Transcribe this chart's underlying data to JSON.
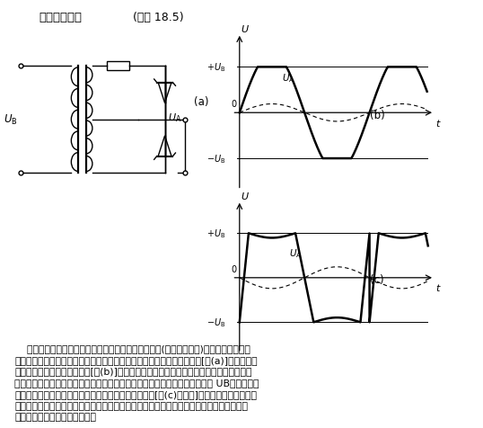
{
  "title_bold": "交流稳压电路",
  "title_normal": "(如图 18.5)",
  "bg_color": "#ffffff",
  "paragraph_lines": [
    "    将两个具有同样稳压值的稳压管反向串联后经由电阻(或电容、电感)接至交流电源，这",
    "里交流电源为变压器次级绕组，利用其抽头作输出端，从而构成桥式电路[图(a)]。在小输入",
    "信号时，输出电压为一梯形波[图(b)]，即顶部被限幅的正弦波，变压器次级绕组下部分产",
    "生的补偿电压可以忽略。随着输入电压的增加，输出电压渐成矩形，其峰值为 UB（稳压管正",
    "向和反向压降之和），并且由于有补偿绕组产生的电压[图(c)中虚线]，使输出电压出现凹陷",
    "部分，适当选择补偿绕组匝数，可使电压有效值近似为常数。此电路适用于精密测量装置中",
    "给电子管灯丝加热的稳压电路。"
  ]
}
